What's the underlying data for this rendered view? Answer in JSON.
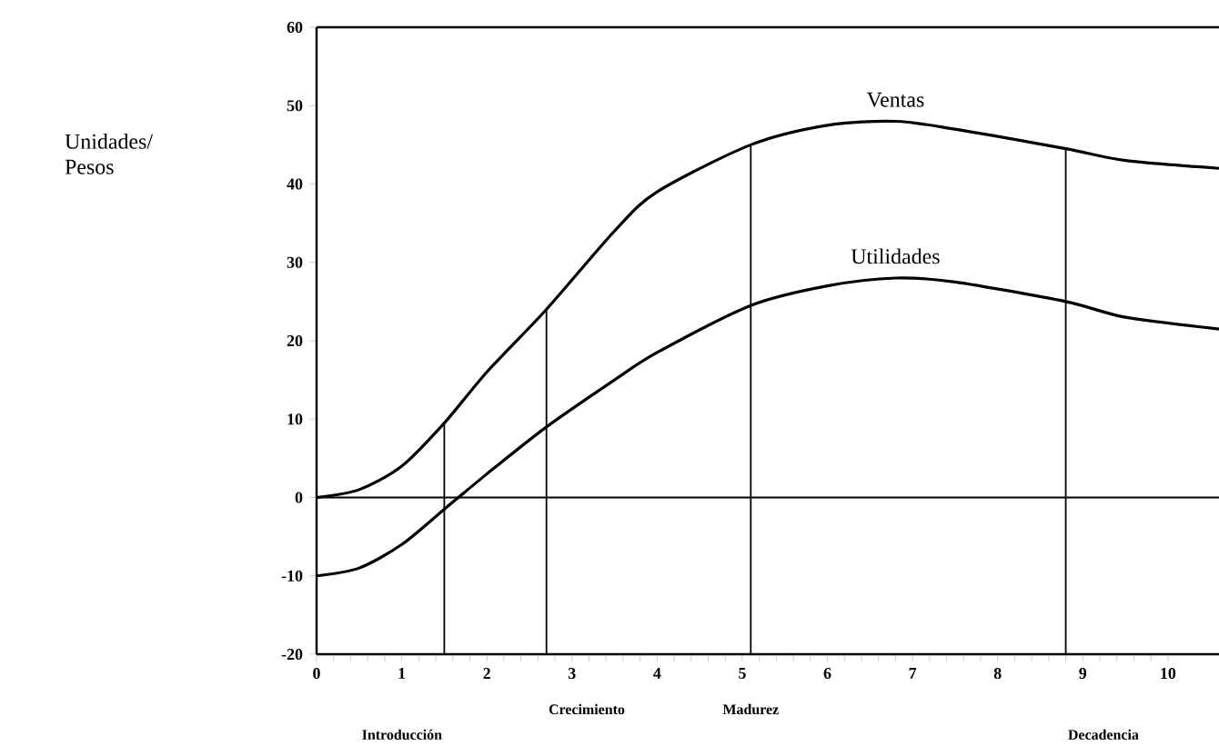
{
  "chart_data": {
    "type": "line",
    "x": [
      0,
      0.5,
      1,
      1.5,
      2,
      2.7,
      3.5,
      4,
      5.1,
      6,
      6.8,
      7.5,
      8.8,
      9.5,
      10.6
    ],
    "series": [
      {
        "name": "Ventas",
        "color": "#000000",
        "values": [
          0,
          1,
          4,
          9.5,
          16,
          24,
          34,
          39,
          45,
          47.5,
          48,
          47,
          44.5,
          43,
          42
        ]
      },
      {
        "name": "Utilidades",
        "color": "#000000",
        "values": [
          -10,
          -9,
          -6,
          -1.5,
          3,
          9,
          15,
          18.5,
          24.5,
          27,
          28,
          27.5,
          25,
          23,
          21.5
        ]
      }
    ],
    "xlim": [
      0,
      10.6
    ],
    "xticks": [
      0,
      1,
      2,
      3,
      4,
      5,
      6,
      7,
      8,
      9,
      10
    ],
    "ylim": [
      -20,
      60
    ],
    "yticks": [
      -20,
      -10,
      0,
      10,
      20,
      30,
      40,
      50,
      60
    ],
    "grid": false,
    "legend": false,
    "marker": "none",
    "line_style": "solid",
    "ref_lines": [
      {
        "axis": "y",
        "value": 0
      },
      {
        "axis": "x",
        "value": 1.5
      },
      {
        "axis": "x",
        "value": 2.7
      },
      {
        "axis": "x",
        "value": 5.1
      },
      {
        "axis": "x",
        "value": 8.8
      }
    ],
    "annotations": [
      "Unidades/ Pesos",
      "Introducción",
      "Crecimiento",
      "Madurez",
      "Decadencia"
    ]
  }
}
